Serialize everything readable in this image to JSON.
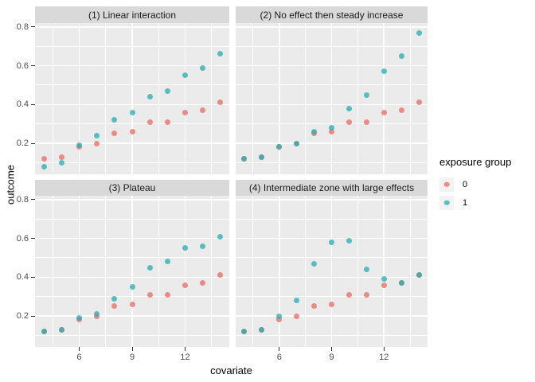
{
  "chart_data": {
    "type": "scatter",
    "xlabel": "covariate",
    "ylabel": "outcome",
    "legend_title": "exposure group",
    "x": [
      4,
      5,
      6,
      7,
      8,
      9,
      10,
      11,
      12,
      13,
      14
    ],
    "xlim": [
      3.5,
      14.5
    ],
    "ylim": [
      0.04,
      0.82
    ],
    "x_ticks": [
      6,
      9,
      12
    ],
    "y_ticks": [
      0.8,
      0.6,
      0.4,
      0.2
    ],
    "x_minor_breaks": [
      4.5,
      7.5,
      10.5,
      13.5
    ],
    "y_minor_breaks": [
      0.1,
      0.3,
      0.5,
      0.7
    ],
    "grid": true,
    "legend_position": "right",
    "groups": [
      {
        "name": "0",
        "color": "rgba(233,105,99,0.75)"
      },
      {
        "name": "1",
        "color": "rgba(38,172,178,0.75)"
      }
    ],
    "facets": [
      {
        "title": "(1) Linear interaction",
        "series": {
          "0": [
            0.12,
            0.13,
            0.18,
            0.2,
            0.25,
            0.26,
            0.31,
            0.31,
            0.36,
            0.37,
            0.41
          ],
          "1": [
            0.08,
            0.1,
            0.19,
            0.24,
            0.32,
            0.36,
            0.44,
            0.47,
            0.55,
            0.59,
            0.66
          ]
        }
      },
      {
        "title": "(2) No effect then steady increase",
        "series": {
          "0": [
            0.12,
            0.13,
            0.18,
            0.2,
            0.25,
            0.26,
            0.31,
            0.31,
            0.36,
            0.37,
            0.41
          ],
          "1": [
            0.12,
            0.13,
            0.18,
            0.2,
            0.26,
            0.28,
            0.38,
            0.45,
            0.57,
            0.65,
            0.77
          ]
        }
      },
      {
        "title": "(3) Plateau",
        "series": {
          "0": [
            0.12,
            0.13,
            0.18,
            0.2,
            0.25,
            0.26,
            0.31,
            0.31,
            0.36,
            0.37,
            0.41
          ],
          "1": [
            0.12,
            0.13,
            0.19,
            0.21,
            0.29,
            0.35,
            0.45,
            0.48,
            0.55,
            0.56,
            0.61
          ]
        }
      },
      {
        "title": "(4) Intermediate zone with large effects",
        "series": {
          "0": [
            0.12,
            0.13,
            0.18,
            0.2,
            0.25,
            0.26,
            0.31,
            0.31,
            0.36,
            0.37,
            0.41
          ],
          "1": [
            0.12,
            0.13,
            0.2,
            0.28,
            0.47,
            0.58,
            0.59,
            0.44,
            0.39,
            0.37,
            0.41
          ]
        }
      }
    ],
    "style": {
      "panel_bg": "#EBEBEB",
      "strip_bg": "#D9D9D9",
      "grid_color": "#FFFFFF",
      "tick_label_color": "#4D4D4D",
      "legend_key_bg": "#F2F2F2",
      "background": "#FFFFFF",
      "point_color_group0_rendered": "#E98985",
      "point_color_group1_rendered": "#57BBC0"
    }
  }
}
